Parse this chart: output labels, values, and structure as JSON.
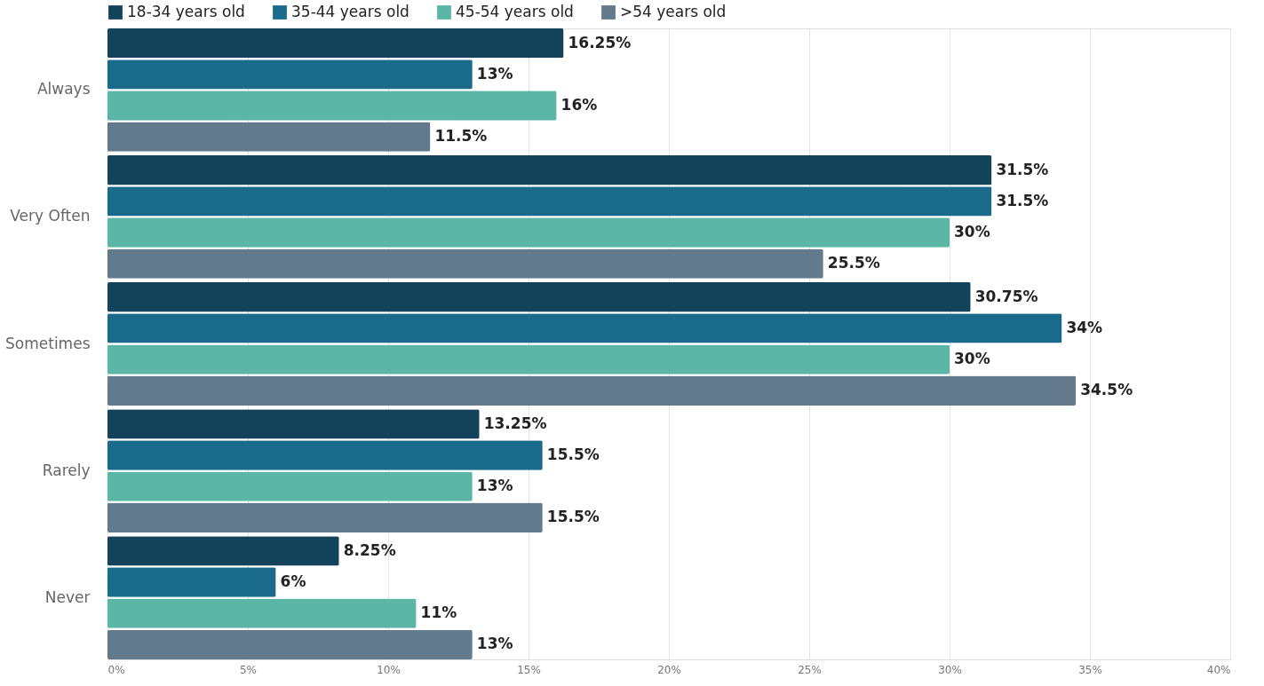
{
  "chart_data": {
    "type": "bar",
    "orientation": "horizontal",
    "categories": [
      "Always",
      "Very Often",
      "Sometimes",
      "Rarely",
      "Never"
    ],
    "series": [
      {
        "name": "18-34 years old",
        "color": "#12435a",
        "values": [
          16.25,
          31.5,
          30.75,
          13.25,
          8.25
        ],
        "value_labels": [
          "16.25%",
          "31.5%",
          "30.75%",
          "13.25%",
          "8.25%"
        ]
      },
      {
        "name": "35-44 years old",
        "color": "#1a6a8c",
        "values": [
          13,
          31.5,
          34,
          15.5,
          6
        ],
        "value_labels": [
          "13%",
          "31.5%",
          "34%",
          "15.5%",
          "6%"
        ]
      },
      {
        "name": "45-54 years old",
        "color": "#5bb6a6",
        "values": [
          16,
          30,
          30,
          13,
          11
        ],
        "value_labels": [
          "16%",
          "30%",
          "30%",
          "13%",
          "11%"
        ]
      },
      {
        "name": ">54 years old",
        "color": "#627a8c",
        "values": [
          11.5,
          25.5,
          34.5,
          15.5,
          13
        ],
        "value_labels": [
          "11.5%",
          "25.5%",
          "34.5%",
          "15.5%",
          "13%"
        ]
      }
    ],
    "xlim": [
      0,
      40
    ],
    "xticks": [
      {
        "value": 0,
        "label": "0%"
      },
      {
        "value": 5,
        "label": "5%"
      },
      {
        "value": 10,
        "label": "10%"
      },
      {
        "value": 15,
        "label": "15%"
      },
      {
        "value": 20,
        "label": "20%"
      },
      {
        "value": 25,
        "label": "25%"
      },
      {
        "value": 30,
        "label": "30%"
      },
      {
        "value": 35,
        "label": "35%"
      },
      {
        "value": 40,
        "label": "40%"
      }
    ],
    "grid": "x",
    "legend": "top left"
  }
}
